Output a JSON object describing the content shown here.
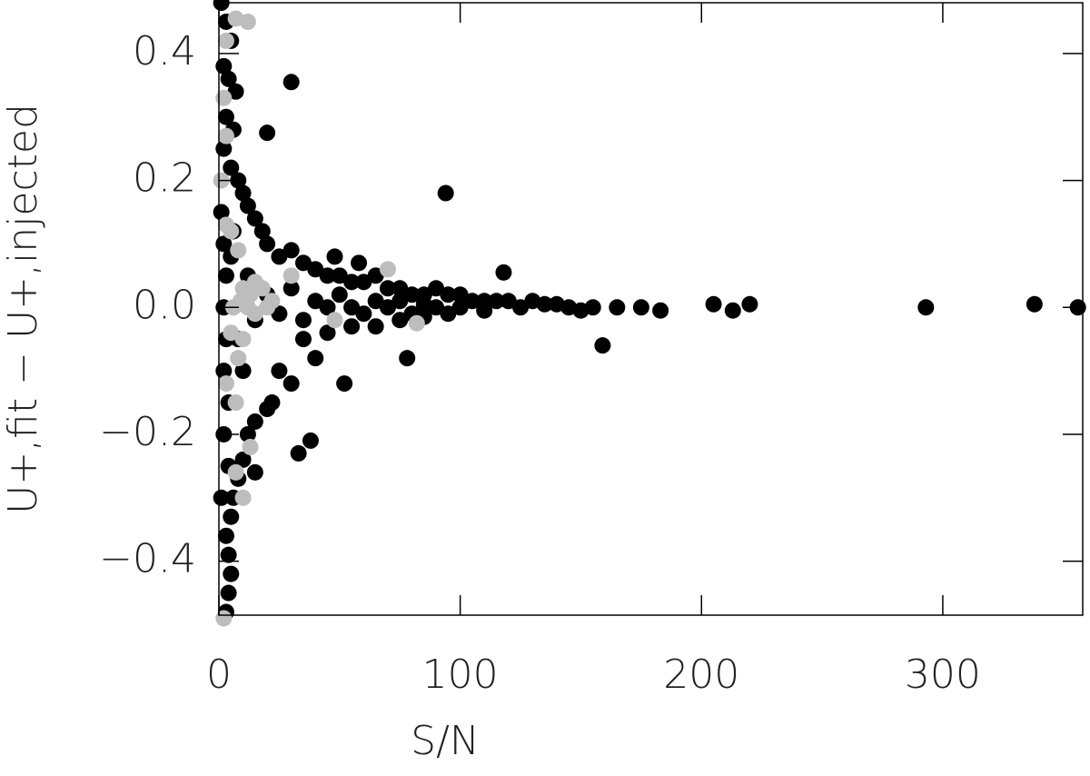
{
  "chart_data": {
    "type": "scatter",
    "xlabel": "S/N",
    "ylabel": "U+,fit − U+,injected",
    "xlim": [
      0,
      358
    ],
    "ylim": [
      -0.485,
      0.48
    ],
    "xticks": [
      0,
      100,
      200,
      300
    ],
    "yticks": [
      {
        "value": -0.4,
        "label": "−0.4"
      },
      {
        "value": -0.2,
        "label": "−0.2"
      },
      {
        "value": 0,
        "label": "0.0"
      },
      {
        "value": 0.2,
        "label": "0.2"
      },
      {
        "value": 0.4,
        "label": "0.4"
      }
    ],
    "series": [
      {
        "color": "#000000",
        "x": [
          1,
          3,
          5,
          2,
          4,
          7,
          3,
          6,
          2,
          5,
          8,
          10,
          12,
          15,
          18,
          20,
          25,
          30,
          35,
          40,
          45,
          50,
          55,
          60,
          48,
          58,
          65,
          70,
          75,
          80,
          85,
          90,
          95,
          100,
          105,
          110,
          115,
          120,
          125,
          130,
          135,
          140,
          145,
          150,
          155,
          165,
          175,
          183,
          205,
          213,
          220,
          293,
          338,
          356,
          159,
          118,
          94,
          30,
          20,
          3,
          4,
          5,
          4,
          3,
          5,
          6,
          8,
          10,
          15,
          12,
          15,
          20,
          22,
          25,
          30,
          33,
          38,
          40,
          52,
          78,
          35,
          45,
          55,
          65,
          75,
          85,
          95,
          110,
          10,
          8,
          12,
          15,
          20,
          25,
          30,
          35,
          40,
          45,
          50,
          55,
          60,
          65,
          70,
          75,
          80,
          85,
          90,
          100,
          2,
          3,
          2,
          3,
          2,
          4,
          2,
          1,
          6,
          5,
          4,
          1
        ],
        "y": [
          0.48,
          0.45,
          0.42,
          0.38,
          0.36,
          0.34,
          0.3,
          0.28,
          0.25,
          0.22,
          0.2,
          0.18,
          0.16,
          0.14,
          0.12,
          0.1,
          0.08,
          0.09,
          0.07,
          0.06,
          0.05,
          0.05,
          0.04,
          0.04,
          0.08,
          0.07,
          0.05,
          0.03,
          0.03,
          0.02,
          0.02,
          0.03,
          0.02,
          0.02,
          0.01,
          0.01,
          0.01,
          0.01,
          0.0,
          0.01,
          0.005,
          0.005,
          0.0,
          -0.005,
          0.0,
          0.0,
          0.0,
          -0.005,
          0.005,
          -0.005,
          0.005,
          0.0,
          0.005,
          0.0,
          -0.06,
          0.055,
          0.18,
          0.355,
          0.275,
          -0.48,
          -0.45,
          -0.42,
          -0.39,
          -0.36,
          -0.33,
          -0.3,
          -0.27,
          -0.24,
          -0.26,
          -0.2,
          -0.18,
          -0.16,
          -0.15,
          -0.1,
          -0.12,
          -0.23,
          -0.21,
          -0.08,
          -0.12,
          -0.08,
          -0.05,
          -0.04,
          -0.03,
          -0.03,
          -0.02,
          -0.015,
          -0.01,
          -0.005,
          -0.1,
          -0.05,
          0.05,
          -0.02,
          0.02,
          -0.01,
          0.03,
          -0.02,
          0.01,
          0.0,
          0.02,
          0.0,
          -0.01,
          0.01,
          0.0,
          0.01,
          -0.01,
          0.005,
          0.0,
          0.0,
          0.1,
          0.05,
          0.0,
          -0.05,
          -0.1,
          -0.15,
          -0.2,
          0.15,
          0.12,
          0.08,
          -0.25,
          -0.3
        ]
      },
      {
        "color": "#bdbdbd",
        "x": [
          3,
          7,
          12,
          2,
          3,
          1,
          3,
          5,
          8,
          10,
          13,
          15,
          18,
          22,
          30,
          70,
          48,
          82,
          5,
          8,
          3,
          7,
          13,
          10,
          7,
          2,
          12,
          15,
          10,
          20,
          6,
          9
        ],
        "y": [
          0.42,
          0.455,
          0.45,
          0.33,
          0.27,
          0.2,
          0.13,
          0.12,
          0.09,
          0.03,
          0.02,
          0.04,
          0.03,
          0.01,
          0.05,
          0.06,
          -0.02,
          -0.025,
          -0.04,
          -0.08,
          -0.12,
          -0.15,
          -0.22,
          -0.3,
          -0.26,
          -0.49,
          0.0,
          -0.01,
          -0.05,
          0.0,
          0.0,
          0.01
        ]
      }
    ]
  }
}
